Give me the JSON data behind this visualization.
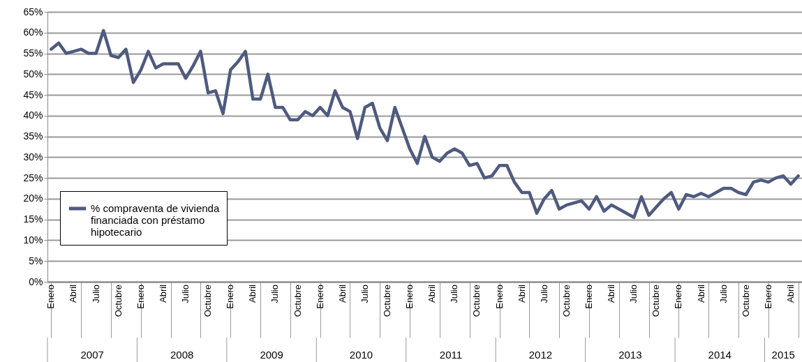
{
  "chart_data": {
    "type": "line",
    "categories": [
      "Enero",
      null,
      null,
      "Abril",
      null,
      null,
      "Julio",
      null,
      null,
      "Octubre",
      null,
      null,
      "Enero",
      null,
      null,
      "Abril",
      null,
      null,
      "Julio",
      null,
      null,
      "Octubre",
      null,
      null,
      "Enero",
      null,
      null,
      "Abril",
      null,
      null,
      "Julio",
      null,
      null,
      "Octubre",
      null,
      null,
      "Enero",
      null,
      null,
      "Abril",
      null,
      null,
      "Julio",
      null,
      null,
      "Octubre",
      null,
      null,
      "Enero",
      null,
      null,
      "Abril",
      null,
      null,
      "Julio",
      null,
      null,
      "Octubre",
      null,
      null,
      "Enero",
      null,
      null,
      "Abril",
      null,
      null,
      "Julio",
      null,
      null,
      "Octubre",
      null,
      null,
      "Enero",
      null,
      null,
      "Abril",
      null,
      null,
      "Julio",
      null,
      null,
      "Octubre",
      null,
      null,
      "Enero",
      null,
      null,
      "Abril",
      null,
      null,
      "Julio",
      null,
      null,
      "Octubre",
      null,
      null,
      "Enero",
      null,
      null,
      "Abril",
      null
    ],
    "series": [
      {
        "name": "% compraventa de vivienda financiada con préstamo hipotecario",
        "color": "#4f5a7e",
        "values": [
          56,
          57.5,
          55,
          55.5,
          56,
          55,
          55,
          60.5,
          54.5,
          54,
          56,
          48,
          51,
          55.5,
          51.5,
          52.5,
          52.5,
          52.5,
          49,
          52,
          55.5,
          45.5,
          46,
          40.5,
          51,
          53,
          55.5,
          44,
          44,
          50,
          42,
          42,
          39,
          39,
          41,
          40,
          42,
          40,
          46,
          42,
          41,
          34.5,
          42,
          43,
          37,
          34,
          42,
          37,
          32,
          28.5,
          35,
          30,
          29,
          31,
          32,
          31,
          28,
          28.5,
          25,
          25.5,
          28,
          28,
          24,
          21.5,
          21.5,
          16.5,
          20,
          22,
          17.5,
          18.5,
          19,
          19.5,
          17.5,
          20.5,
          17,
          18.5,
          17.5,
          16.5,
          15.5,
          20.5,
          16,
          18,
          20,
          21.5,
          17.5,
          21,
          20.5,
          21.3,
          20.5,
          21.5,
          22.5,
          22.5,
          21.5,
          21,
          24,
          24.5,
          24,
          25,
          25.5,
          23.5,
          25.5
        ]
      }
    ],
    "ylim": [
      0,
      65
    ],
    "yticks": [
      {
        "value": 0,
        "label": "0%"
      },
      {
        "value": 5,
        "label": "5%"
      },
      {
        "value": 10,
        "label": "10%"
      },
      {
        "value": 15,
        "label": "15%"
      },
      {
        "value": 20,
        "label": "20%"
      },
      {
        "value": 25,
        "label": "25%"
      },
      {
        "value": 30,
        "label": "30%"
      },
      {
        "value": 35,
        "label": "35%"
      },
      {
        "value": 40,
        "label": "40%"
      },
      {
        "value": 45,
        "label": "45%"
      },
      {
        "value": 50,
        "label": "50%"
      },
      {
        "value": 55,
        "label": "55%"
      },
      {
        "value": 60,
        "label": "60%"
      },
      {
        "value": 65,
        "label": "65%"
      }
    ],
    "grid": "y",
    "legend": "bottom left",
    "annotations": [
      "2007",
      "2008",
      "2009",
      "2010",
      "2011",
      "2012",
      "2013",
      "2014",
      "2015"
    ]
  }
}
